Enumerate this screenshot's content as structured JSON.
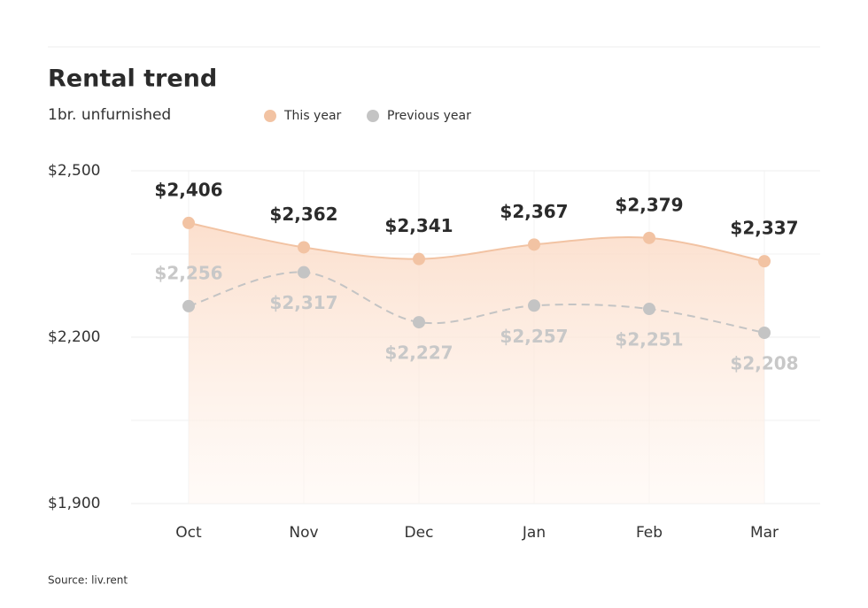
{
  "chart_data": {
    "type": "line",
    "title": "Rental trend",
    "subtitle": "1br. unfurnished",
    "source": "Source: liv.rent",
    "categories": [
      "Oct",
      "Nov",
      "Dec",
      "Jan",
      "Feb",
      "Mar"
    ],
    "series": [
      {
        "name": "This year",
        "color": "#f2c3a3",
        "area": true,
        "dashed": false,
        "values": [
          2406,
          2362,
          2341,
          2367,
          2379,
          2337
        ],
        "value_labels": [
          "$2,406",
          "$2,362",
          "$2,341",
          "$2,367",
          "$2,379",
          "$2,337"
        ]
      },
      {
        "name": "Previous year",
        "color": "#c4c4c4",
        "area": false,
        "dashed": true,
        "values": [
          2256,
          2317,
          2227,
          2257,
          2251,
          2208
        ],
        "value_labels": [
          "$2,256",
          "$2,317",
          "$2,227",
          "$2,257",
          "$2,251",
          "$2,208"
        ]
      }
    ],
    "ylim": [
      1900,
      2500
    ],
    "yticks": [
      {
        "value": 1900,
        "label": "$1,900"
      },
      {
        "value": 2200,
        "label": "$2,200"
      },
      {
        "value": 2500,
        "label": "$2,500"
      }
    ],
    "minor_yticks": [
      2050,
      2350
    ],
    "grid": true
  }
}
